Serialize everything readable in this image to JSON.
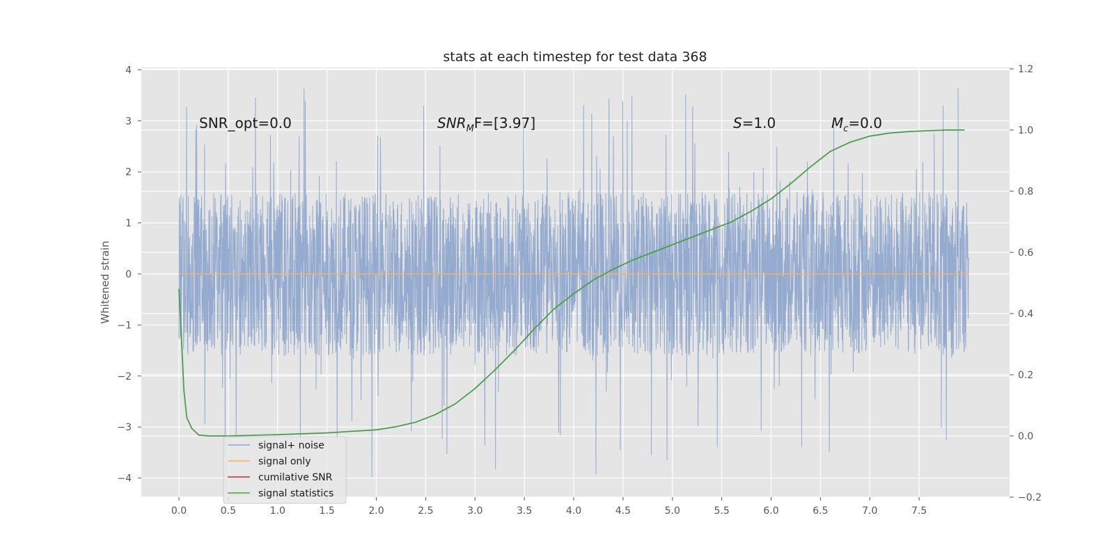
{
  "chart_data": {
    "type": "line",
    "title": "stats at each timestep for test data 368",
    "ylabel": "Whitened strain",
    "xlabel": "",
    "xlim": [
      -0.4,
      8.4
    ],
    "ylim": [
      -4.35,
      4.05
    ],
    "y2lim": [
      -0.2,
      1.2
    ],
    "x_ticks": [
      "0.0",
      "0.5",
      "1.0",
      "1.5",
      "2.0",
      "2.5",
      "3.0",
      "3.5",
      "4.0",
      "4.5",
      "5.0",
      "5.5",
      "6.0",
      "6.5",
      "7.0",
      "7.5"
    ],
    "y_ticks": [
      "4",
      "3",
      "2",
      "1",
      "0",
      "−1",
      "−2",
      "−3",
      "−4"
    ],
    "y2_ticks": [
      "1.2",
      "1.0",
      "0.8",
      "0.6",
      "0.4",
      "0.2",
      "0.0",
      "−0.2"
    ],
    "grid": true,
    "legend_position": "lower-left",
    "annotations": {
      "snr_opt": "SNR_opt=0.0",
      "snr_mf": "SNR",
      "snr_mf_sub": "M",
      "snr_mf_rest": "F=[3.97]",
      "s_label": "S",
      "s_value": "=1.0",
      "mc_label": "M",
      "mc_sub": "c",
      "mc_value": "=0.0"
    },
    "series": [
      {
        "name": "signal+ noise",
        "color": "#8fa6cc",
        "axis": "left",
        "x_range": [
          0,
          8.0
        ],
        "amplitude_typical": 1.6,
        "amplitude_peak_max": 3.65,
        "amplitude_trough_min": -4.0
      },
      {
        "name": "signal only",
        "color": "#f0b46a",
        "axis": "left",
        "x": [
          0,
          8.0
        ],
        "values": [
          0,
          0
        ]
      },
      {
        "name": "cumilative SNR",
        "color": "#d62728",
        "axis": "left",
        "x": [],
        "values": []
      },
      {
        "name": "signal statistics",
        "color": "#4a9e4a",
        "axis": "right",
        "x": [
          0,
          0.02,
          0.05,
          0.08,
          0.13,
          0.2,
          0.3,
          0.5,
          1.0,
          1.5,
          2.0,
          2.2,
          2.4,
          2.6,
          2.8,
          3.0,
          3.2,
          3.4,
          3.6,
          3.8,
          4.0,
          4.2,
          4.4,
          4.6,
          4.8,
          5.0,
          5.2,
          5.4,
          5.6,
          5.8,
          6.0,
          6.2,
          6.4,
          6.6,
          6.8,
          7.0,
          7.2,
          7.4,
          7.6,
          7.8,
          7.96
        ],
        "values": [
          0.48,
          0.36,
          0.15,
          0.06,
          0.025,
          0.003,
          0.0,
          0.0,
          0.004,
          0.01,
          0.02,
          0.03,
          0.045,
          0.07,
          0.105,
          0.155,
          0.215,
          0.28,
          0.35,
          0.415,
          0.465,
          0.51,
          0.545,
          0.575,
          0.6,
          0.625,
          0.65,
          0.675,
          0.7,
          0.735,
          0.775,
          0.825,
          0.88,
          0.93,
          0.96,
          0.98,
          0.99,
          0.995,
          0.998,
          1.0,
          1.0
        ]
      }
    ]
  }
}
